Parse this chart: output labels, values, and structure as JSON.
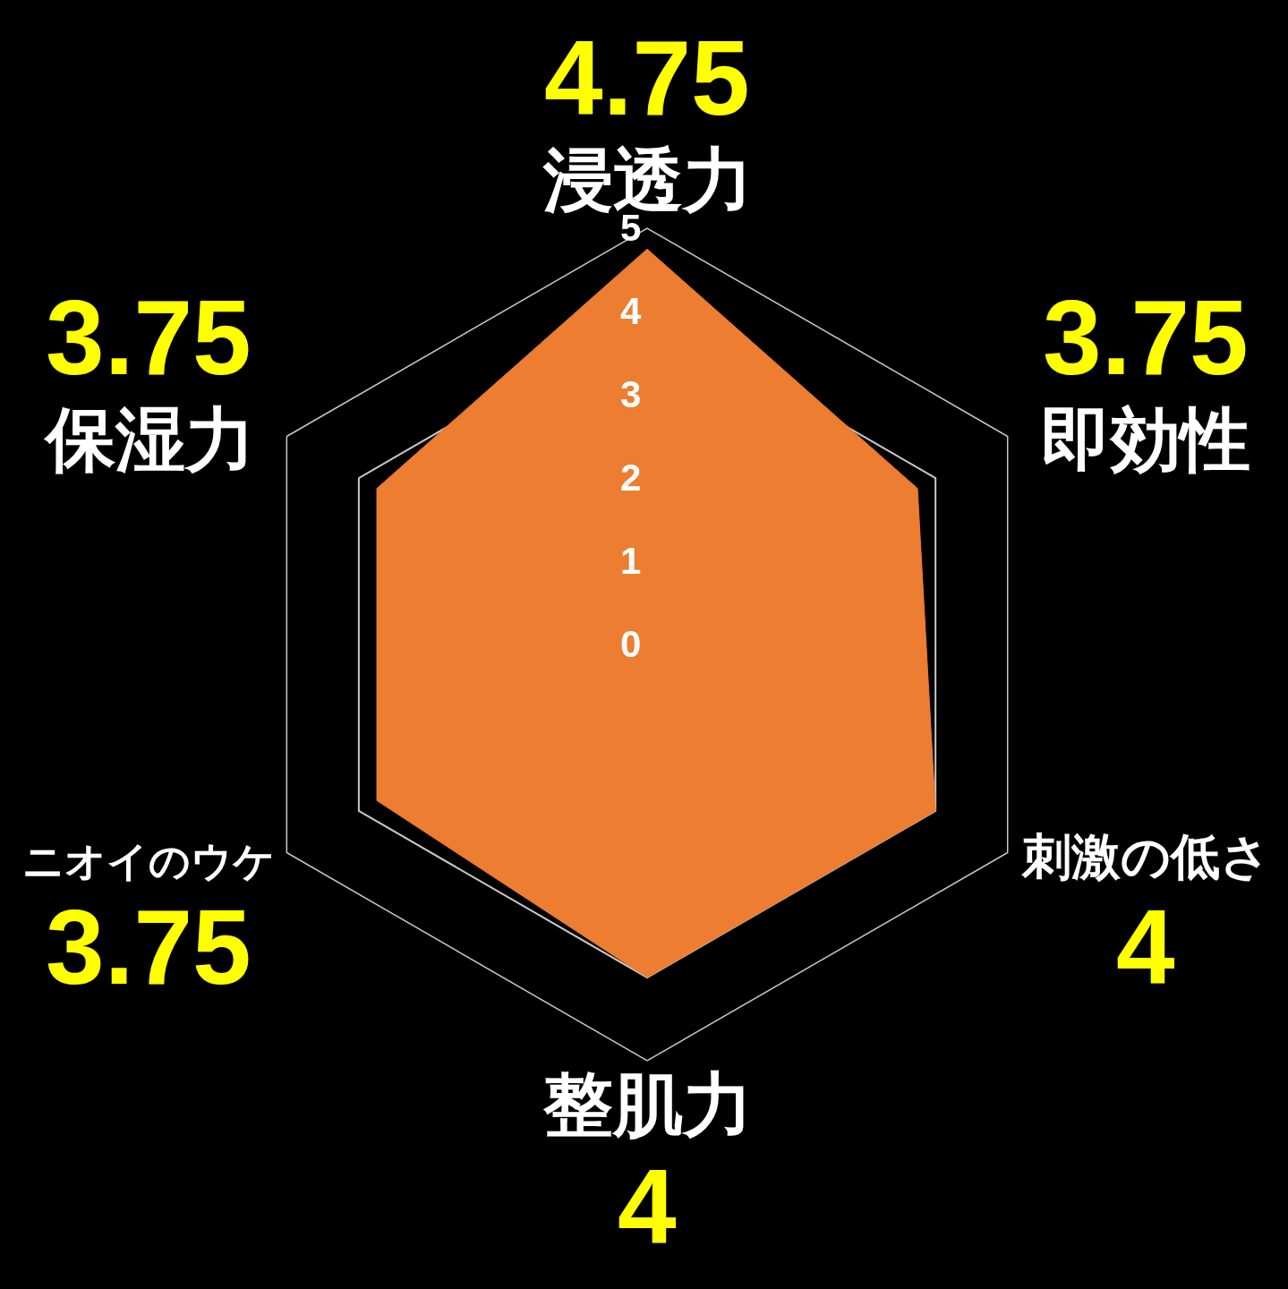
{
  "chart_data": {
    "type": "radar",
    "categories": [
      "浸透力",
      "即効性",
      "刺激の低さ",
      "整肌力",
      "ニオイのウケ",
      "保湿力"
    ],
    "series": [
      {
        "color": "#ed7d31",
        "values": [
          4.75,
          3.75,
          4,
          4,
          3.75,
          3.75
        ]
      }
    ],
    "ylim": [
      0,
      5
    ],
    "yticks": [
      0,
      1,
      2,
      3,
      4,
      5
    ],
    "grid": true,
    "data_labels": true
  }
}
